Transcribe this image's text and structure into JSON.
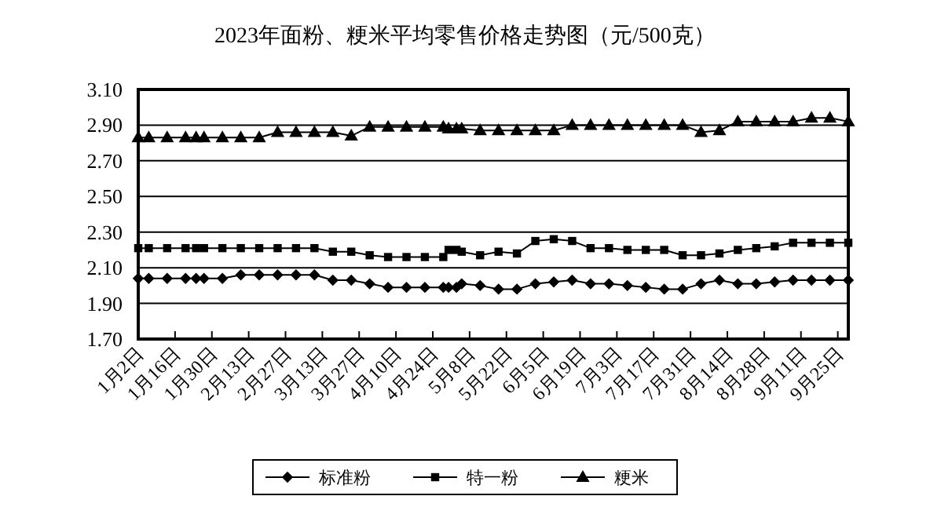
{
  "chart_data": {
    "type": "line",
    "title": "2023年面粉、粳米平均零售价格走势图（元/500克）",
    "x": [
      "2023-01-02",
      "2023-01-06",
      "2023-01-13",
      "2023-01-20",
      "2023-01-24",
      "2023-01-27",
      "2023-02-03",
      "2023-02-10",
      "2023-02-17",
      "2023-02-24",
      "2023-03-03",
      "2023-03-10",
      "2023-03-17",
      "2023-03-24",
      "2023-03-31",
      "2023-04-07",
      "2023-04-14",
      "2023-04-21",
      "2023-04-28",
      "2023-04-30",
      "2023-05-03",
      "2023-05-05",
      "2023-05-12",
      "2023-05-19",
      "2023-05-26",
      "2023-06-02",
      "2023-06-09",
      "2023-06-16",
      "2023-06-23",
      "2023-06-30",
      "2023-07-07",
      "2023-07-14",
      "2023-07-21",
      "2023-07-28",
      "2023-08-04",
      "2023-08-11",
      "2023-08-18",
      "2023-08-25",
      "2023-09-01",
      "2023-09-08",
      "2023-09-15",
      "2023-09-22",
      "2023-09-29"
    ],
    "series": [
      {
        "name": "标准粉",
        "color": "#000000",
        "marker": "diamond",
        "values": [
          2.04,
          2.04,
          2.04,
          2.04,
          2.04,
          2.04,
          2.04,
          2.06,
          2.06,
          2.06,
          2.06,
          2.06,
          2.03,
          2.03,
          2.01,
          1.99,
          1.99,
          1.99,
          1.99,
          1.99,
          1.99,
          2.01,
          2.0,
          1.98,
          1.98,
          2.01,
          2.02,
          2.03,
          2.01,
          2.01,
          2.0,
          1.99,
          1.98,
          1.98,
          2.01,
          2.03,
          2.01,
          2.01,
          2.02,
          2.03,
          2.03,
          2.03,
          2.03
        ]
      },
      {
        "name": "特一粉",
        "color": "#000000",
        "marker": "square",
        "values": [
          2.21,
          2.21,
          2.21,
          2.21,
          2.21,
          2.21,
          2.21,
          2.21,
          2.21,
          2.21,
          2.21,
          2.21,
          2.19,
          2.19,
          2.17,
          2.16,
          2.16,
          2.16,
          2.16,
          2.2,
          2.2,
          2.19,
          2.17,
          2.19,
          2.18,
          2.25,
          2.26,
          2.25,
          2.21,
          2.21,
          2.2,
          2.2,
          2.2,
          2.17,
          2.17,
          2.18,
          2.2,
          2.21,
          2.22,
          2.24,
          2.24,
          2.24,
          2.24
        ]
      },
      {
        "name": "粳米",
        "color": "#000000",
        "marker": "triangle",
        "values": [
          2.83,
          2.83,
          2.83,
          2.83,
          2.83,
          2.83,
          2.83,
          2.83,
          2.83,
          2.86,
          2.86,
          2.86,
          2.86,
          2.84,
          2.89,
          2.89,
          2.89,
          2.89,
          2.89,
          2.88,
          2.88,
          2.88,
          2.87,
          2.87,
          2.87,
          2.87,
          2.87,
          2.9,
          2.9,
          2.9,
          2.9,
          2.9,
          2.9,
          2.9,
          2.86,
          2.87,
          2.92,
          2.92,
          2.92,
          2.92,
          2.94,
          2.94,
          2.92
        ]
      }
    ],
    "xlim": [
      "2023-01-02",
      "2023-09-29"
    ],
    "xticks": [
      {
        "value": "2023-01-02",
        "label": "1月2日"
      },
      {
        "value": "2023-01-16",
        "label": "1月16日"
      },
      {
        "value": "2023-01-30",
        "label": "1月30日"
      },
      {
        "value": "2023-02-13",
        "label": "2月13日"
      },
      {
        "value": "2023-02-27",
        "label": "2月27日"
      },
      {
        "value": "2023-03-13",
        "label": "3月13日"
      },
      {
        "value": "2023-03-27",
        "label": "3月27日"
      },
      {
        "value": "2023-04-10",
        "label": "4月10日"
      },
      {
        "value": "2023-04-24",
        "label": "4月24日"
      },
      {
        "value": "2023-05-08",
        "label": "5月8日"
      },
      {
        "value": "2023-05-22",
        "label": "5月22日"
      },
      {
        "value": "2023-06-05",
        "label": "6月5日"
      },
      {
        "value": "2023-06-19",
        "label": "6月19日"
      },
      {
        "value": "2023-07-03",
        "label": "7月3日"
      },
      {
        "value": "2023-07-17",
        "label": "7月17日"
      },
      {
        "value": "2023-07-31",
        "label": "7月31日"
      },
      {
        "value": "2023-08-14",
        "label": "8月14日"
      },
      {
        "value": "2023-08-28",
        "label": "8月28日"
      },
      {
        "value": "2023-09-11",
        "label": "9月11日"
      },
      {
        "value": "2023-09-25",
        "label": "9月25日"
      }
    ],
    "ylim": [
      1.7,
      3.1
    ],
    "yticks": [
      {
        "value": 1.7,
        "label": "1.70"
      },
      {
        "value": 1.9,
        "label": "1.90"
      },
      {
        "value": 2.1,
        "label": "2.10"
      },
      {
        "value": 2.3,
        "label": "2.30"
      },
      {
        "value": 2.5,
        "label": "2.50"
      },
      {
        "value": 2.7,
        "label": "2.70"
      },
      {
        "value": 2.9,
        "label": "2.90"
      },
      {
        "value": 3.1,
        "label": "3.10"
      }
    ],
    "grid": "y",
    "legend": "bottom",
    "line_style": "solid"
  }
}
